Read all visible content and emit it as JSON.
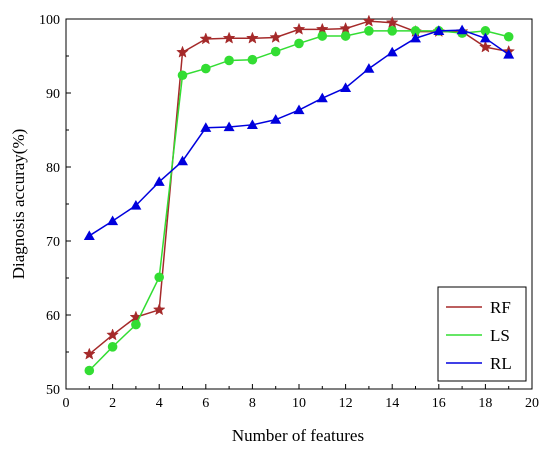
{
  "chart_data": {
    "type": "line",
    "xlabel": "Number of features",
    "ylabel": "Diagnosis accuray(%)",
    "xlim": [
      0,
      20
    ],
    "ylim": [
      50,
      100
    ],
    "x_ticks": [
      0,
      2,
      4,
      6,
      8,
      10,
      12,
      14,
      16,
      18,
      20
    ],
    "y_ticks": [
      50,
      60,
      70,
      80,
      90,
      100
    ],
    "grid": false,
    "legend_position": "bottom-right",
    "x": [
      1,
      2,
      3,
      4,
      5,
      6,
      7,
      8,
      9,
      10,
      11,
      12,
      13,
      14,
      15,
      16,
      17,
      18,
      19
    ],
    "series": [
      {
        "name": "RF",
        "color": "#a52a2a",
        "marker": "star",
        "values": [
          54.7,
          57.3,
          59.7,
          60.7,
          95.5,
          97.3,
          97.4,
          97.4,
          97.5,
          98.6,
          98.6,
          98.7,
          99.7,
          99.5,
          98.3,
          98.3,
          98.3,
          96.2,
          95.6
        ]
      },
      {
        "name": "LS",
        "color": "#33dd33",
        "marker": "circle",
        "values": [
          52.5,
          55.7,
          58.7,
          65.1,
          92.4,
          93.3,
          94.4,
          94.5,
          95.6,
          96.7,
          97.7,
          97.7,
          98.4,
          98.4,
          98.4,
          98.4,
          98.1,
          98.4,
          97.6
        ]
      },
      {
        "name": "RL",
        "color": "#0000dd",
        "marker": "triangle",
        "values": [
          70.7,
          72.7,
          74.8,
          78.0,
          80.8,
          85.3,
          85.4,
          85.7,
          86.4,
          87.7,
          89.3,
          90.7,
          93.3,
          95.5,
          97.4,
          98.4,
          98.5,
          97.4,
          95.2
        ]
      }
    ]
  }
}
